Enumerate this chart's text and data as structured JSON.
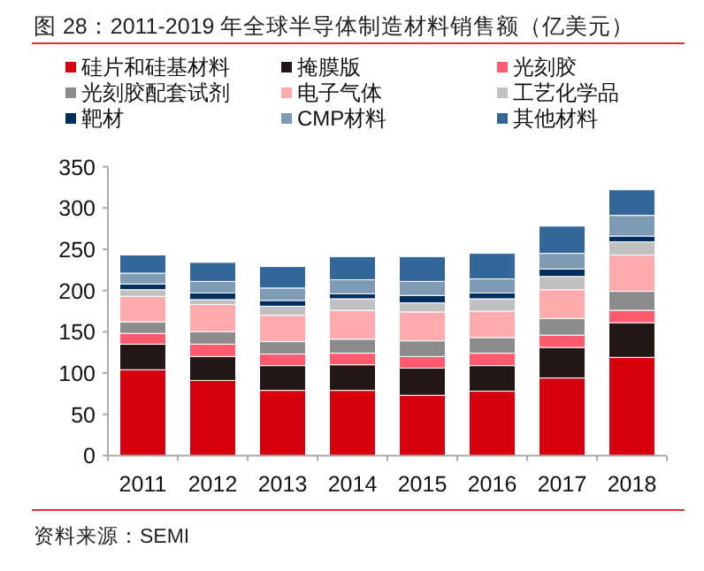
{
  "chart_data": {
    "type": "bar",
    "stacked": true,
    "title": "图 28：2011-2019 年全球半导体制造材料销售额（亿美元）",
    "annotations": [
      "资料来源：SEMI"
    ],
    "categories": [
      "2011",
      "2012",
      "2013",
      "2014",
      "2015",
      "2016",
      "2017",
      "2018"
    ],
    "ylim": [
      0,
      350
    ],
    "yticks": [
      0,
      50,
      100,
      150,
      200,
      250,
      300,
      350
    ],
    "legend": "top",
    "grid": false,
    "series": [
      {
        "name": "硅片和硅基材料",
        "color": "#d7000f",
        "values": [
          104,
          91,
          79,
          79,
          73,
          78,
          94,
          119
        ]
      },
      {
        "name": "掩膜版",
        "color": "#231815",
        "values": [
          31,
          29,
          30,
          31,
          33,
          31,
          37,
          42
        ]
      },
      {
        "name": "光刻胶",
        "color": "#ff5a6e",
        "values": [
          13,
          15,
          14,
          14,
          14,
          15,
          15,
          15
        ]
      },
      {
        "name": "光刻胶配套试剂",
        "color": "#8c8c8c",
        "values": [
          14,
          15,
          15,
          17,
          19,
          19,
          20,
          23
        ]
      },
      {
        "name": "电子气体",
        "color": "#ffaaae",
        "values": [
          31,
          33,
          32,
          35,
          35,
          32,
          35,
          44
        ]
      },
      {
        "name": "工艺化学品",
        "color": "#c0c0c0",
        "values": [
          8,
          6,
          11,
          14,
          11,
          15,
          16,
          16
        ]
      },
      {
        "name": "靶材",
        "color": "#002f5f",
        "values": [
          7,
          8,
          7,
          6,
          9,
          7,
          9,
          7
        ]
      },
      {
        "name": "CMP材料",
        "color": "#7f9ab5",
        "values": [
          13,
          14,
          15,
          17,
          17,
          17,
          19,
          25
        ]
      },
      {
        "name": "其他材料",
        "color": "#336699",
        "values": [
          22,
          23,
          26,
          28,
          30,
          31,
          33,
          31
        ]
      }
    ]
  }
}
